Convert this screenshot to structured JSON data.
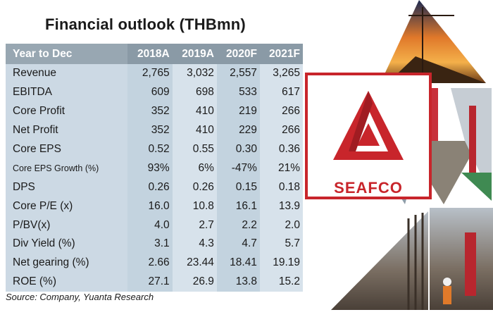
{
  "title": "Financial outlook (THBmn)",
  "table": {
    "header": {
      "label": "Year to Dec",
      "years": [
        "2018A",
        "2019A",
        "2020F",
        "2021F"
      ]
    },
    "rows": [
      {
        "label": "Revenue",
        "values": [
          "2,765",
          "3,032",
          "2,557",
          "3,265"
        ]
      },
      {
        "label": "EBITDA",
        "values": [
          "609",
          "698",
          "533",
          "617"
        ]
      },
      {
        "label": "Core Profit",
        "values": [
          "352",
          "410",
          "219",
          "266"
        ]
      },
      {
        "label": "Net Profit",
        "values": [
          "352",
          "410",
          "229",
          "266"
        ]
      },
      {
        "label": "Core EPS",
        "values": [
          "0.52",
          "0.55",
          "0.30",
          "0.36"
        ]
      },
      {
        "label": "Core EPS Growth (%)",
        "values": [
          "93%",
          "6%",
          "-47%",
          "21%"
        ]
      },
      {
        "label": "DPS",
        "values": [
          "0.26",
          "0.26",
          "0.15",
          "0.18"
        ]
      },
      {
        "label": "Core P/E (x)",
        "values": [
          "16.0",
          "10.8",
          "16.1",
          "13.9"
        ]
      },
      {
        "label": "P/BV(x)",
        "values": [
          "4.0",
          "2.7",
          "2.2",
          "2.0"
        ]
      },
      {
        "label": "Div Yield (%)",
        "values": [
          "3.1",
          "4.3",
          "4.7",
          "5.7"
        ]
      },
      {
        "label": "Net gearing (%)",
        "values": [
          "2.66",
          "23.44",
          "18.41",
          "19.19"
        ]
      },
      {
        "label": "ROE (%)",
        "values": [
          "27.1",
          "26.9",
          "13.8",
          "15.2"
        ]
      }
    ]
  },
  "source": "Source: Company, Yuanta Research",
  "logo": {
    "text": "SEAFCO",
    "color": "#c8252b"
  },
  "photos": [
    "construction-sunset-photo",
    "pile-rig-photo",
    "crane-photo",
    "rebar-cage-photo",
    "workers-photo"
  ]
}
